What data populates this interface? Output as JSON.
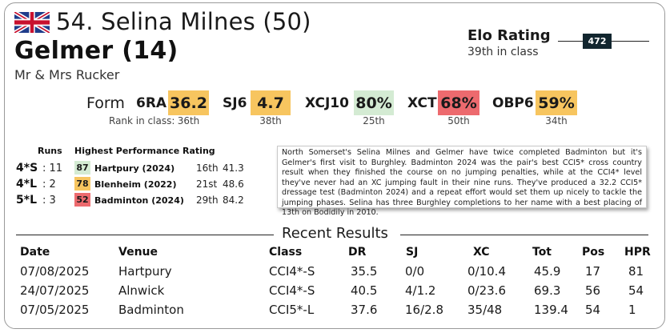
{
  "header": {
    "flag_icon": "uk-flag-icon",
    "rider": "54. Selina Milnes (50)",
    "horse": "Gelmer (14)",
    "owner": "Mr & Mrs Rucker"
  },
  "elo": {
    "title": "Elo Rating",
    "rank_text": "39th in class",
    "value": "472"
  },
  "form": {
    "label": "Form",
    "rank_caption": "Rank in class:",
    "phases": [
      {
        "label": "6RA",
        "value": "36.2",
        "rank": "36th",
        "color": "#f7c55f"
      },
      {
        "label": "SJ6",
        "value": "4.7",
        "rank": "38th",
        "color": "#f7c55f"
      },
      {
        "label": "XCJ10",
        "value": "80%",
        "rank": "25th",
        "color": "#d4ebd3"
      },
      {
        "label": "XCT",
        "value": "68%",
        "rank": "50th",
        "color": "#ed6a6e"
      },
      {
        "label": "OBP6",
        "value": "59%",
        "rank": "34th",
        "color": "#f7c55f"
      }
    ]
  },
  "runs": {
    "header": "Runs",
    "hpr_header": "Highest Performance Rating",
    "rows": [
      {
        "level": "4*S",
        "count": ": 11",
        "hpr": "87",
        "hpr_color": "#d4ebd3",
        "event": "Hartpury (2024)",
        "rank": "16th",
        "score": "41.3"
      },
      {
        "level": "4*L",
        "count": ": 2",
        "hpr": "78",
        "hpr_color": "#f7c55f",
        "event": "Blenheim (2022)",
        "rank": "21st",
        "score": "48.6"
      },
      {
        "level": "5*L",
        "count": ": 3",
        "hpr": "52",
        "hpr_color": "#ed6a6e",
        "event": "Badminton (2024)",
        "rank": "29th",
        "score": "84.2"
      }
    ]
  },
  "comment": "North Somerset's Selina Milnes and Gelmer have twice completed Badminton but it's Gelmer's first visit to Burghley. Badminton 2024 was the pair's best CCI5* cross country result when they finished the course on no jumping penalties, while at the CCI4* level they've never had an XC jumping fault in their nine runs. They've produced a 32.2 CCI5* dressage test (Badminton 2024) and a repeat effort would set them up nicely to tackle the jumping phases. Selina has three Burghley completions to her name with a best placing of 13th on Bodidily in 2010.",
  "recent": {
    "title": "Recent Results",
    "columns": [
      "Date",
      "Venue",
      "Class",
      "DR",
      "SJ",
      "XC",
      "Tot",
      "Pos",
      "HPR"
    ],
    "rows": [
      [
        "07/08/2025",
        "Hartpury",
        "CCI4*-S",
        "35.5",
        "0/0",
        "0/10.4",
        "45.9",
        "17",
        "81"
      ],
      [
        "24/07/2025",
        "Alnwick",
        "CCI4*-S",
        "40.5",
        "4/1.2",
        "0/23.6",
        "69.3",
        "56",
        "54"
      ],
      [
        "07/05/2025",
        "Badminton",
        "CCI5*-L",
        "37.6",
        "16/2.8",
        "35/48",
        "139.4",
        "54",
        "1"
      ]
    ]
  }
}
